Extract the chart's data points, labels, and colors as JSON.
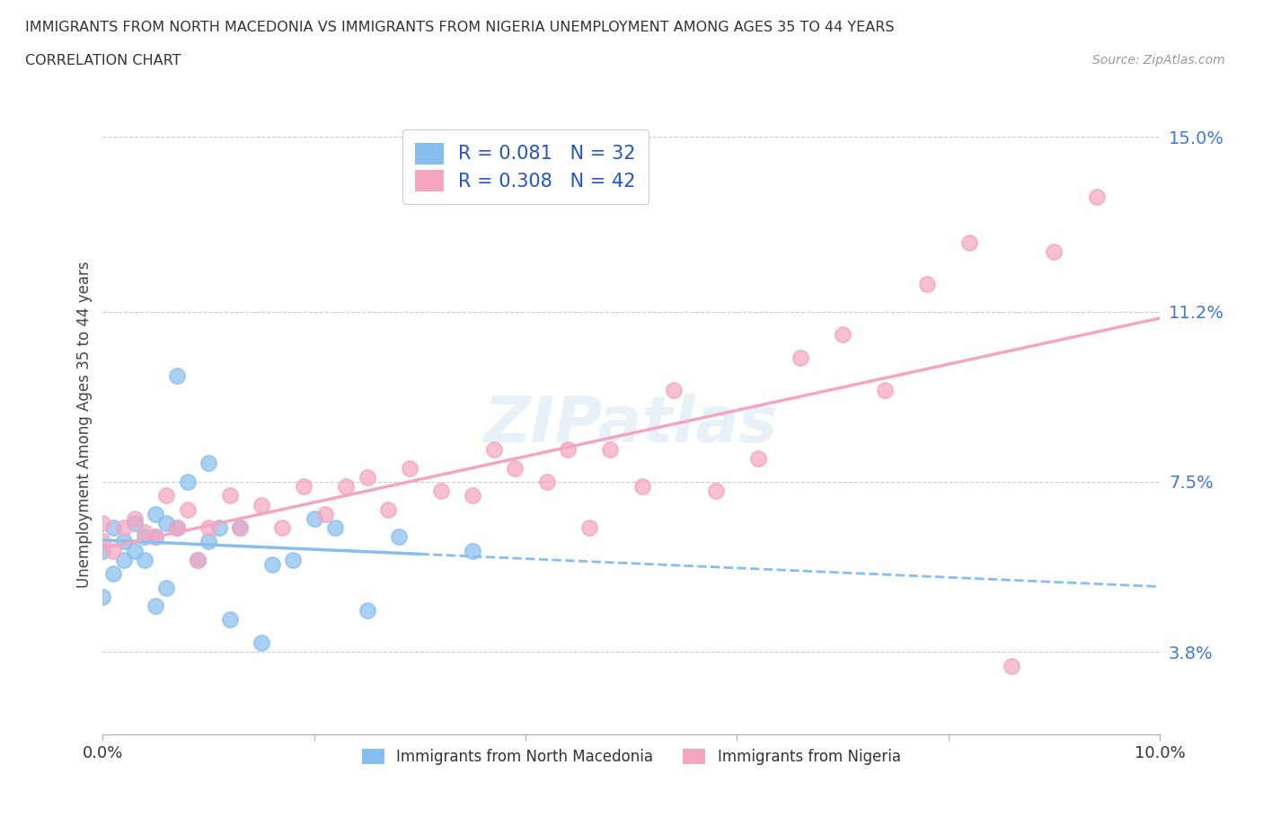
{
  "title_line1": "IMMIGRANTS FROM NORTH MACEDONIA VS IMMIGRANTS FROM NIGERIA UNEMPLOYMENT AMONG AGES 35 TO 44 YEARS",
  "title_line2": "CORRELATION CHART",
  "source": "Source: ZipAtlas.com",
  "ylabel": "Unemployment Among Ages 35 to 44 years",
  "xlim": [
    0.0,
    0.1
  ],
  "ylim": [
    0.02,
    0.155
  ],
  "yticks": [
    0.038,
    0.075,
    0.112,
    0.15
  ],
  "ytick_labels": [
    "3.8%",
    "7.5%",
    "11.2%",
    "15.0%"
  ],
  "xtick_positions": [
    0.0,
    0.02,
    0.04,
    0.06,
    0.08,
    0.1
  ],
  "xtick_labels": [
    "0.0%",
    "",
    "",
    "",
    "",
    "10.0%"
  ],
  "series1_name": "Immigrants from North Macedonia",
  "series1_color": "#87beee",
  "series1_R": 0.081,
  "series1_N": 32,
  "series2_name": "Immigrants from Nigeria",
  "series2_color": "#f4a5bf",
  "series2_R": 0.308,
  "series2_N": 42,
  "legend_text_color": "#2255cc",
  "mac_x": [
    0.0,
    0.0,
    0.001,
    0.001,
    0.002,
    0.002,
    0.003,
    0.003,
    0.004,
    0.004,
    0.005,
    0.005,
    0.005,
    0.006,
    0.006,
    0.007,
    0.007,
    0.008,
    0.009,
    0.01,
    0.01,
    0.011,
    0.012,
    0.013,
    0.015,
    0.016,
    0.018,
    0.02,
    0.022,
    0.025,
    0.028,
    0.035
  ],
  "mac_y": [
    0.06,
    0.05,
    0.055,
    0.065,
    0.058,
    0.062,
    0.06,
    0.066,
    0.058,
    0.063,
    0.048,
    0.063,
    0.068,
    0.052,
    0.066,
    0.065,
    0.098,
    0.075,
    0.058,
    0.062,
    0.079,
    0.065,
    0.045,
    0.065,
    0.04,
    0.057,
    0.058,
    0.067,
    0.065,
    0.047,
    0.063,
    0.06
  ],
  "nig_x": [
    0.0,
    0.0,
    0.001,
    0.002,
    0.003,
    0.004,
    0.005,
    0.006,
    0.007,
    0.008,
    0.009,
    0.01,
    0.012,
    0.013,
    0.015,
    0.017,
    0.019,
    0.021,
    0.023,
    0.025,
    0.027,
    0.029,
    0.032,
    0.035,
    0.037,
    0.039,
    0.042,
    0.044,
    0.046,
    0.048,
    0.051,
    0.054,
    0.058,
    0.062,
    0.066,
    0.07,
    0.074,
    0.078,
    0.082,
    0.086,
    0.09,
    0.094
  ],
  "nig_y": [
    0.062,
    0.066,
    0.06,
    0.065,
    0.067,
    0.064,
    0.063,
    0.072,
    0.065,
    0.069,
    0.058,
    0.065,
    0.072,
    0.065,
    0.07,
    0.065,
    0.074,
    0.068,
    0.074,
    0.076,
    0.069,
    0.078,
    0.073,
    0.072,
    0.082,
    0.078,
    0.075,
    0.082,
    0.065,
    0.082,
    0.074,
    0.095,
    0.073,
    0.08,
    0.102,
    0.107,
    0.095,
    0.118,
    0.127,
    0.035,
    0.125,
    0.137
  ]
}
